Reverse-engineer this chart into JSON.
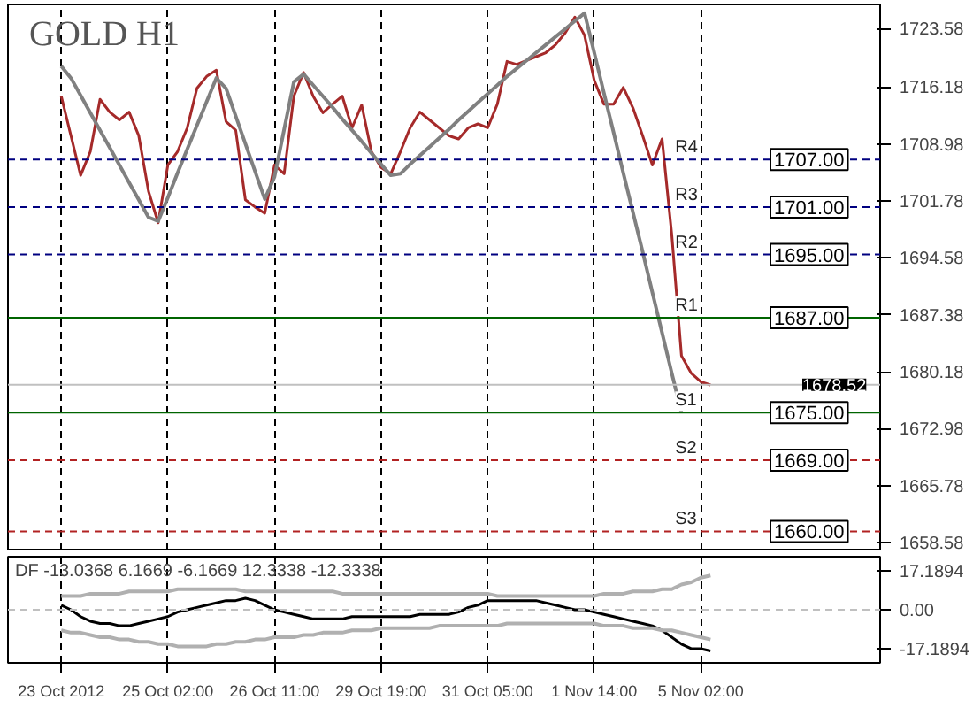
{
  "chart_data": [
    {
      "type": "line",
      "title": "GOLD H1",
      "grid": "x",
      "tick_labels": "y",
      "ylim": [
        1657.7,
        1726.6
      ],
      "categories": [
        "23 Oct 2012",
        null,
        null,
        null,
        null,
        null,
        null,
        null,
        null,
        null,
        null,
        "25 Oct 02:00",
        null,
        null,
        null,
        null,
        null,
        null,
        null,
        null,
        null,
        null,
        "26 Oct 11:00",
        null,
        null,
        null,
        null,
        null,
        null,
        null,
        null,
        null,
        null,
        "29 Oct 19:00",
        null,
        null,
        null,
        null,
        null,
        null,
        null,
        null,
        null,
        null,
        "31 Oct 05:00",
        null,
        null,
        null,
        null,
        null,
        null,
        null,
        null,
        null,
        null,
        "1 Nov 14:00",
        null,
        null,
        null,
        null,
        null,
        null,
        null,
        null,
        null,
        null,
        "5 Nov 02:00",
        null,
        null,
        null,
        null,
        null,
        null,
        null,
        null,
        null,
        null,
        null,
        null,
        null,
        null,
        null,
        null,
        null,
        null
      ],
      "yticks": [
        {
          "value": 1658.58,
          "label": "1658.58"
        },
        {
          "value": 1665.78,
          "label": "1665.78"
        },
        {
          "value": 1672.98,
          "label": "1672.98"
        },
        {
          "value": 1680.18,
          "label": "1680.18"
        },
        {
          "value": 1687.38,
          "label": "1687.38"
        },
        {
          "value": 1694.58,
          "label": "1694.58"
        },
        {
          "value": 1701.78,
          "label": "1701.78"
        },
        {
          "value": 1708.98,
          "label": "1708.98"
        },
        {
          "value": 1716.18,
          "label": "1716.18"
        },
        {
          "value": 1723.58,
          "label": "1723.58"
        }
      ],
      "series": [
        {
          "color": "#a52a2a",
          "values": [
            1715.0,
            1710,
            1705,
            1708,
            1714.6,
            1713,
            1712,
            1713,
            1710,
            1703,
            1699,
            1706.3,
            1708,
            1711,
            1716,
            1717.5,
            1718.3,
            1711.8,
            1710.7,
            1701.9,
            1701,
            1700.2,
            1706.3,
            1705.2,
            1715,
            1718,
            1715.0,
            1712.9,
            1714,
            1715.0,
            1711,
            1713.9,
            1708,
            1706,
            1705.2,
            1708,
            1711,
            1713,
            1712,
            1711,
            1710,
            1709.6,
            1711,
            1711.5,
            1711,
            1714,
            1719.4,
            1719,
            1719.5,
            1720,
            1720.5,
            1721.5,
            1723,
            1725,
            1722.7,
            1717,
            1714,
            1714,
            1716.1,
            1713.5,
            1710,
            1706.3,
            1709.6,
            1697.5,
            1682.2,
            1680.0,
            1678.9,
            1678.5,
            null,
            null,
            null,
            null,
            null,
            null,
            null,
            null,
            null,
            null,
            null,
            null,
            null,
            null,
            null,
            null,
            null
          ]
        },
        {
          "color": "#808080",
          "values": [
            1718.8,
            1717.3,
            1715.1,
            1712.9,
            1710.7,
            1708.5,
            1706.3,
            1704.1,
            1701.9,
            1699.7,
            1699.2,
            1702.2,
            1705.3,
            1708.3,
            1711.3,
            1714.3,
            1717.3,
            1716.0,
            1712.5,
            1709.0,
            1705.5,
            1702.0,
            1704.8,
            1710.8,
            1716.8,
            1717.8,
            1716.4,
            1715.0,
            1713.6,
            1712.1,
            1710.7,
            1709.3,
            1707.8,
            1706.4,
            1705.0,
            1705.2,
            1706.4,
            1707.5,
            1708.6,
            1709.7,
            1710.8,
            1712.0,
            1713.1,
            1714.2,
            1715.3,
            1716.4,
            1717.5,
            1718.5,
            1719.5,
            1720.5,
            1721.5,
            1722.5,
            1723.5,
            1724.5,
            1725.5,
            1720.5,
            1715.4,
            1710.4,
            1705.3,
            1700.3,
            1695.3,
            1690.2,
            1685.1,
            1680.0,
            1675.0,
            null,
            null,
            null,
            null,
            null,
            null,
            null,
            null,
            null,
            null,
            null,
            null,
            null,
            null,
            null,
            null,
            null,
            null,
            null,
            null
          ]
        }
      ],
      "ref_lines": [
        {
          "axis": "y",
          "value": 1707,
          "label": "R4",
          "color": "#000080",
          "line_style": "dashed"
        },
        {
          "axis": "y",
          "value": 1701,
          "label": "R3",
          "color": "#000080",
          "line_style": "dashed"
        },
        {
          "axis": "y",
          "value": 1695,
          "label": "R2",
          "color": "#000080",
          "line_style": "dashed"
        },
        {
          "axis": "y",
          "value": 1687,
          "label": "R1",
          "color": "#006400",
          "line_style": "solid"
        },
        {
          "axis": "y",
          "value": 1675,
          "label": "S1",
          "color": "#006400",
          "line_style": "solid"
        },
        {
          "axis": "y",
          "value": 1669,
          "label": "S2",
          "color": "#b22222",
          "line_style": "dashed"
        },
        {
          "axis": "y",
          "value": 1660,
          "label": "S3",
          "color": "#b22222",
          "line_style": "dashed"
        },
        {
          "axis": "y",
          "value": 1678.52,
          "label": "1678.52",
          "color": "#c0c0c0",
          "line_style": "solid"
        }
      ],
      "annotations": [
        {
          "text": "1707.00",
          "y": 1707
        },
        {
          "text": "1701.00",
          "y": 1701
        },
        {
          "text": "1695.00",
          "y": 1695
        },
        {
          "text": "1687.00",
          "y": 1687
        },
        {
          "text": "1675.00",
          "y": 1675
        },
        {
          "text": "1669.00",
          "y": 1669
        },
        {
          "text": "1660.00",
          "y": 1660
        }
      ]
    },
    {
      "type": "line",
      "title": "DF -13.0368 6.1669 -6.1669 12.3338 -12.3338",
      "grid": "x",
      "ylim": [
        -23.2,
        23.2
      ],
      "categories": [
        "23 Oct 2012",
        null,
        null,
        null,
        null,
        null,
        null,
        null,
        null,
        null,
        null,
        "25 Oct 02:00",
        null,
        null,
        null,
        null,
        null,
        null,
        null,
        null,
        null,
        null,
        "26 Oct 11:00",
        null,
        null,
        null,
        null,
        null,
        null,
        null,
        null,
        null,
        null,
        "29 Oct 19:00",
        null,
        null,
        null,
        null,
        null,
        null,
        null,
        null,
        null,
        null,
        "31 Oct 05:00",
        null,
        null,
        null,
        null,
        null,
        null,
        null,
        null,
        null,
        null,
        "1 Nov 14:00",
        null,
        null,
        null,
        null,
        null,
        null,
        null,
        null,
        null,
        null,
        "5 Nov 02:00",
        null,
        null,
        null,
        null,
        null,
        null,
        null,
        null,
        null,
        null,
        null,
        null,
        null,
        null,
        null,
        null,
        null,
        null
      ],
      "yticks": [
        {
          "value": -17.1894,
          "label": "-17.1894"
        },
        {
          "value": 0,
          "label": "0.00"
        },
        {
          "value": 17.1894,
          "label": "17.1894"
        }
      ],
      "series": [
        {
          "color": "#000000",
          "values": [
            2,
            0,
            -3,
            -5,
            -6,
            -6,
            -7,
            -7,
            -6,
            -5,
            -4,
            -3,
            -1,
            0,
            1,
            2,
            3,
            4,
            4,
            5,
            4,
            2,
            0,
            -1,
            -2,
            -3,
            -4,
            -4,
            -4,
            -4,
            -3,
            -3,
            -3,
            -3,
            -3,
            -3,
            -3,
            -2,
            -2,
            -2,
            -2,
            -1,
            1,
            2,
            4,
            4,
            4,
            4,
            4,
            4,
            3,
            2,
            1,
            0,
            0,
            -1,
            -2,
            -3,
            -4,
            -5,
            -6,
            -7,
            -9,
            -12,
            -15,
            -17,
            -17,
            -18,
            null,
            null,
            null,
            null,
            null,
            null,
            null,
            null,
            null,
            null,
            null,
            null,
            null,
            null,
            null,
            null,
            null
          ]
        },
        {
          "color": "#b0b0b0",
          "values": [
            6,
            6,
            6,
            7,
            7,
            7,
            7,
            8,
            8,
            8,
            8,
            8,
            9,
            9,
            9,
            9,
            9,
            9,
            9,
            8,
            8,
            8,
            8,
            8,
            8,
            8,
            8,
            8,
            8,
            7,
            7,
            7,
            7,
            7,
            7,
            7,
            7,
            7,
            7,
            7,
            7,
            7,
            7,
            7,
            7,
            6,
            6,
            6,
            6,
            6,
            6,
            6,
            6,
            6,
            6,
            6,
            7,
            7,
            7,
            8,
            8,
            8,
            9,
            9,
            11,
            12,
            14,
            15,
            null,
            null,
            null,
            null,
            null,
            null,
            null,
            null,
            null,
            null,
            null,
            null,
            null,
            null,
            null,
            null,
            null
          ]
        },
        {
          "color": "#b0b0b0",
          "values": [
            -9,
            -10,
            -10,
            -11,
            -12,
            -12,
            -13,
            -13,
            -14,
            -14,
            -15,
            -15,
            -16,
            -16,
            -16,
            -16,
            -15,
            -15,
            -14,
            -14,
            -13,
            -13,
            -12,
            -12,
            -12,
            -11,
            -11,
            -10,
            -10,
            -10,
            -9,
            -9,
            -9,
            -8,
            -8,
            -8,
            -8,
            -8,
            -8,
            -7,
            -7,
            -7,
            -7,
            -7,
            -7,
            -7,
            -6,
            -6,
            -6,
            -6,
            -6,
            -6,
            -6,
            -6,
            -6,
            -6,
            -7,
            -7,
            -7,
            -8,
            -8,
            -8,
            -9,
            -9,
            -10,
            -11,
            -12,
            -13,
            null,
            null,
            null,
            null,
            null,
            null,
            null,
            null,
            null,
            null,
            null,
            null,
            null,
            null,
            null,
            null,
            null
          ]
        }
      ],
      "ref_lines": [
        {
          "axis": "y",
          "value": 0,
          "color": "#c0c0c0",
          "line_style": "dashed"
        }
      ]
    }
  ]
}
